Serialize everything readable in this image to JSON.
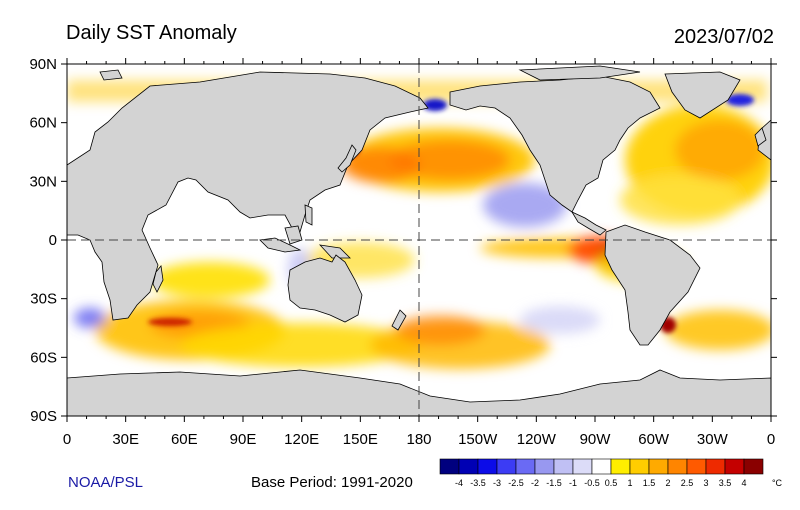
{
  "header": {
    "title": "Daily SST Anomaly",
    "date": "2023/07/02"
  },
  "map": {
    "projection": "equirectangular",
    "center_longitude": 180,
    "longitude_range": [
      0,
      360
    ],
    "latitude_range": [
      -90,
      90
    ],
    "y_ticks": [
      "90N",
      "60N",
      "30N",
      "0",
      "30S",
      "60S",
      "90S"
    ],
    "x_ticks": [
      "0",
      "30E",
      "60E",
      "90E",
      "120E",
      "150E",
      "180",
      "150W",
      "120W",
      "90W",
      "60W",
      "30W",
      "0"
    ],
    "land_color": "#d3d3d3",
    "ocean_base_color": "#ffffff",
    "dashed_lines": [
      "equator",
      "dateline"
    ]
  },
  "footer": {
    "credit": "NOAA/PSL",
    "base_period": "Base Period: 1991-2020"
  },
  "colorbar": {
    "unit": "°C",
    "labels": [
      "-4",
      "-3.5",
      "-3",
      "-2.5",
      "-2",
      "-1.5",
      "-1",
      "-0.5",
      "0.5",
      "1",
      "1.5",
      "2",
      "2.5",
      "3",
      "3.5",
      "4"
    ],
    "colors": [
      "#00007f",
      "#0000b4",
      "#0c0ce8",
      "#3c3cf4",
      "#6a6af4",
      "#9898f0",
      "#c0c0f4",
      "#dcdcf8",
      "#ffffff",
      "#ffee00",
      "#ffcd00",
      "#ffaa00",
      "#ff8500",
      "#ff5a00",
      "#ee2a00",
      "#c40000",
      "#8a0000"
    ]
  }
}
